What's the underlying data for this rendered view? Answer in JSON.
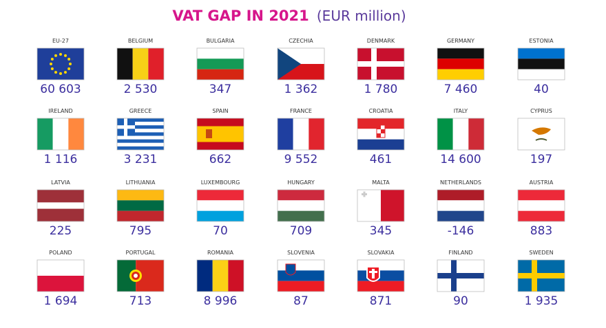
{
  "title": "VAT GAP IN 2021",
  "unit": "(EUR million)",
  "items": [
    {
      "name": "EU-27",
      "value": "60 603"
    },
    {
      "name": "BELGIUM",
      "value": "2 530"
    },
    {
      "name": "BULGARIA",
      "value": "347"
    },
    {
      "name": "CZECHIA",
      "value": "1 362"
    },
    {
      "name": "DENMARK",
      "value": "1 780"
    },
    {
      "name": "GERMANY",
      "value": "7 460"
    },
    {
      "name": "ESTONIA",
      "value": "40"
    },
    {
      "name": "IRELAND",
      "value": "1 116"
    },
    {
      "name": "GREECE",
      "value": "3 231"
    },
    {
      "name": "SPAIN",
      "value": "662"
    },
    {
      "name": "FRANCE",
      "value": "9 552"
    },
    {
      "name": "CROATIA",
      "value": "461"
    },
    {
      "name": "ITALY",
      "value": "14 600"
    },
    {
      "name": "CYPRUS",
      "value": "197"
    },
    {
      "name": "LATVIA",
      "value": "225"
    },
    {
      "name": "LITHUANIA",
      "value": "795"
    },
    {
      "name": "LUXEMBOURG",
      "value": "70"
    },
    {
      "name": "HUNGARY",
      "value": "709"
    },
    {
      "name": "MALTA",
      "value": "345"
    },
    {
      "name": "NETHERLANDS",
      "value": "-146"
    },
    {
      "name": "AUSTRIA",
      "value": "883"
    },
    {
      "name": "POLAND",
      "value": "1 694"
    },
    {
      "name": "PORTUGAL",
      "value": "713"
    },
    {
      "name": "ROMANIA",
      "value": "8 996"
    },
    {
      "name": "SLOVENIA",
      "value": "87"
    },
    {
      "name": "SLOVAKIA",
      "value": "871"
    },
    {
      "name": "FINLAND",
      "value": "90"
    },
    {
      "name": "SWEDEN",
      "value": "1 935"
    }
  ]
}
